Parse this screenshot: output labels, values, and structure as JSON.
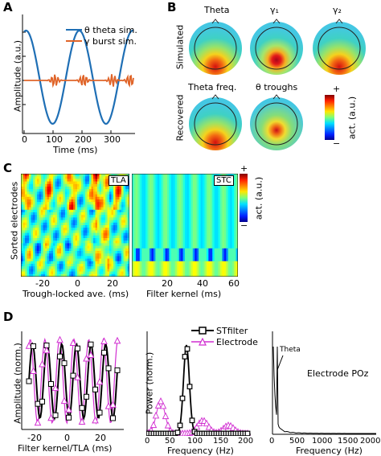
{
  "panels": {
    "a": "A",
    "b": "B",
    "c": "C",
    "d": "D"
  },
  "panelA": {
    "ylabel": "Amplitude (a.u.)",
    "xlabel": "Time (ms)",
    "xticks": [
      "0",
      "100",
      "200",
      "300"
    ],
    "legend": [
      {
        "label": "θ theta sim.",
        "color": "#1f6fb5"
      },
      {
        "label": "γ burst sim.",
        "color": "#e0652a"
      }
    ]
  },
  "panelB": {
    "row1_label": "Simulated",
    "row2_label": "Recovered",
    "titles": [
      "Theta",
      "γ₁",
      "γ₂",
      "Theta freq.",
      "θ troughs"
    ],
    "colorbar_label": "act. (a.u.)",
    "colorbar_plus": "+",
    "colorbar_minus": "−"
  },
  "panelC": {
    "ylabel": "Sorted electrodes",
    "left_tag": "TLA",
    "right_tag": "STC",
    "left_xlabel": "Trough-locked ave. (ms)",
    "right_xlabel": "Filter kernel (ms)",
    "left_xticks": [
      "-20",
      "0",
      "20"
    ],
    "right_xticks": [
      "20",
      "40",
      "60"
    ],
    "colorbar_label": "act. (a.u.)",
    "colorbar_plus": "+",
    "colorbar_minus": "−"
  },
  "panelD": {
    "left": {
      "ylabel": "Amplitude (norm.)",
      "xlabel": "Filter kernel/TLA (ms)",
      "xticks": [
        "-20",
        "0",
        "20"
      ]
    },
    "mid": {
      "ylabel": "Power (norm.)",
      "xlabel": "Frequency (Hz)",
      "xticks": [
        "0",
        "50",
        "100",
        "150",
        "200"
      ],
      "legend": [
        {
          "label": "STfilter",
          "color": "#000000"
        },
        {
          "label": "Electrode",
          "color": "#d12fd1"
        }
      ]
    },
    "right": {
      "xlabel": "Frequency (Hz)",
      "xticks": [
        "0",
        "500",
        "1000",
        "1500",
        "2000"
      ],
      "annotation": "Theta",
      "title": "Electrode POz"
    }
  }
}
